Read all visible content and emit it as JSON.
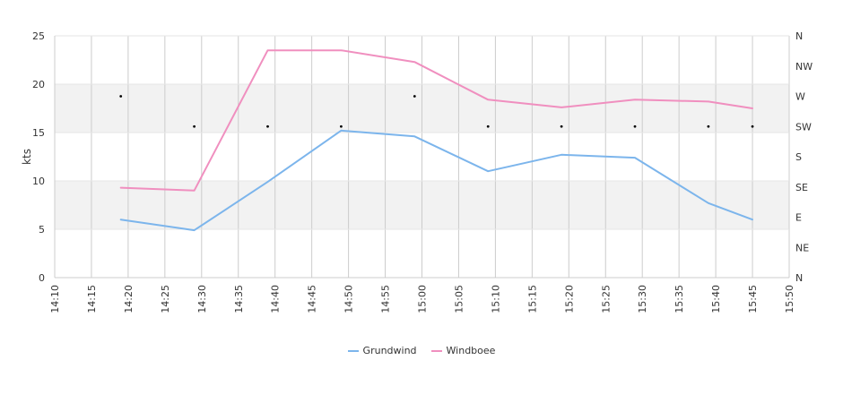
{
  "chart_data": {
    "type": "line",
    "ylabel": "kts",
    "ylim": [
      0,
      25
    ],
    "yticks": [
      "0",
      "5",
      "10",
      "15",
      "20",
      "25"
    ],
    "xticks": [
      "14:10",
      "14:15",
      "14:20",
      "14:25",
      "14:30",
      "14:35",
      "14:40",
      "14:45",
      "14:50",
      "14:55",
      "15:00",
      "15:05",
      "15:10",
      "15:15",
      "15:20",
      "15:25",
      "15:30",
      "15:35",
      "15:40",
      "15:45",
      "15:50"
    ],
    "xlim": [
      "14:10",
      "15:50"
    ],
    "y2ticks": [
      "N",
      "NE",
      "E",
      "SE",
      "S",
      "SW",
      "W",
      "NW",
      "N"
    ],
    "bands": [
      [
        5,
        10
      ],
      [
        15,
        20
      ]
    ],
    "grid": true,
    "legend": "bottom-center",
    "x": [
      "14:19",
      "14:29",
      "14:39",
      "14:49",
      "14:59",
      "15:09",
      "15:19",
      "15:29",
      "15:39",
      "15:45"
    ],
    "series": [
      {
        "name": "Grundwind",
        "color": "#7cb5ec",
        "values": [
          6.0,
          4.9,
          9.9,
          15.2,
          14.6,
          11.0,
          12.7,
          12.4,
          7.7,
          6.0
        ]
      },
      {
        "name": "Windboee",
        "color": "#f08fbf",
        "values": [
          9.3,
          9.0,
          23.5,
          23.5,
          22.3,
          18.4,
          17.6,
          18.4,
          18.2,
          17.5
        ]
      }
    ],
    "direction_x": [
      "14:19",
      "14:29",
      "14:39",
      "14:49",
      "14:59",
      "15:09",
      "15:19",
      "15:29",
      "15:39",
      "15:45"
    ],
    "direction_y": [
      "W",
      "SW",
      "SW",
      "SW",
      "W",
      "SW",
      "SW",
      "SW",
      "SW",
      "SW"
    ]
  }
}
